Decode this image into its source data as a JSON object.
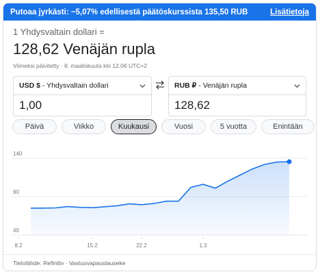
{
  "banner": {
    "text": "Putoaa jyrkästi: −5,07% edellisestä päätöskurssista 135,50 RUB",
    "link": "Lisätietoja",
    "color": "#1a73e8"
  },
  "conversion": {
    "label": "1 Yhdysvaltain dollari =",
    "value": "128,62 Venäjän rupla",
    "updated": "Viimeksi päivitetty · 8. maaliskuuta klo 12.06 UTC+2"
  },
  "from": {
    "currency": "USD $",
    "name": " - Yhdysvaltain dollari",
    "amount": "1,00"
  },
  "to": {
    "currency": "RUB ₽",
    "name": " - Venäjän rupla",
    "amount": "128,62"
  },
  "icons": {
    "swap": "swap-icon",
    "dropdown": "chevron-down-icon"
  },
  "ranges": [
    {
      "label": "Päivä",
      "active": false
    },
    {
      "label": "Viikko",
      "active": false
    },
    {
      "label": "Kuukausi",
      "active": true
    },
    {
      "label": "Vuosi",
      "active": false
    },
    {
      "label": "5 vuotta",
      "active": false
    },
    {
      "label": "Enintään",
      "active": false
    }
  ],
  "chart_data": {
    "type": "area",
    "x": [
      "5.2",
      "7.2",
      "9.2",
      "11.2",
      "13.2",
      "15.2",
      "17.2",
      "19.2",
      "21.2",
      "22.2",
      "23.2",
      "25.2",
      "27.2",
      "28.2",
      "1.3",
      "2.3",
      "3.3",
      "4.3",
      "5.3",
      "6.3",
      "7.3",
      "8.3"
    ],
    "values": [
      75.0,
      75.0,
      75.3,
      77.0,
      76.0,
      75.5,
      76.8,
      78.0,
      80.5,
      79.5,
      81.0,
      84.0,
      84.0,
      102.0,
      106.0,
      101.0,
      110.0,
      118.0,
      126.0,
      132.0,
      135.0,
      135.5
    ],
    "yticks": [
      140,
      90,
      40
    ],
    "xticks": [
      "8.2",
      "15.2",
      "22.2",
      "1.3"
    ],
    "ylim": [
      40,
      140
    ],
    "color": "#1a73e8"
  },
  "footer": {
    "source": "Tietolähde: Refinitiv · Vastuuvapauslauseke"
  }
}
